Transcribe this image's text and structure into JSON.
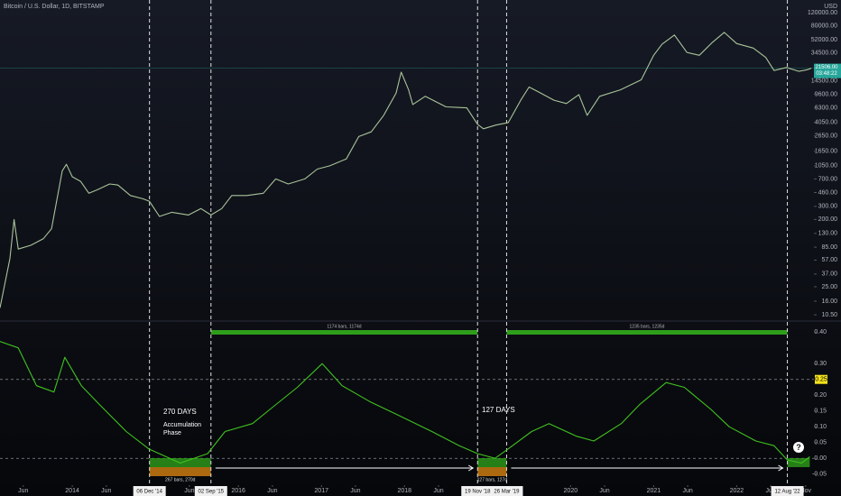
{
  "chart_data": [
    {
      "type": "line",
      "title": "Bitcoin / U.S. Dollar, 1D, BITSTAMP",
      "unit": "USD",
      "log_scale": true,
      "grid": false,
      "x": [
        2013.13,
        2013.25,
        2013.3,
        2013.35,
        2013.5,
        2013.65,
        2013.75,
        2013.88,
        2013.93,
        2014.0,
        2014.1,
        2014.2,
        2014.3,
        2014.45,
        2014.55,
        2014.7,
        2014.85,
        2014.93,
        2015.05,
        2015.2,
        2015.4,
        2015.55,
        2015.67,
        2015.8,
        2015.92,
        2016.1,
        2016.3,
        2016.45,
        2016.6,
        2016.8,
        2016.95,
        2017.1,
        2017.3,
        2017.45,
        2017.6,
        2017.75,
        2017.9,
        2017.96,
        2018.05,
        2018.1,
        2018.25,
        2018.5,
        2018.75,
        2018.88,
        2018.95,
        2019.1,
        2019.25,
        2019.4,
        2019.5,
        2019.6,
        2019.8,
        2019.95,
        2020.1,
        2020.2,
        2020.35,
        2020.6,
        2020.85,
        2021.0,
        2021.1,
        2021.25,
        2021.4,
        2021.55,
        2021.7,
        2021.85,
        2022.0,
        2022.2,
        2022.35,
        2022.45,
        2022.6,
        2022.75,
        2022.85,
        2022.9
      ],
      "series": [
        {
          "color": "#a9c49a",
          "values": [
            13,
            60,
            200,
            80,
            90,
            110,
            150,
            900,
            1100,
            750,
            650,
            450,
            500,
            600,
            580,
            420,
            380,
            350,
            220,
            250,
            230,
            280,
            230,
            280,
            420,
            420,
            450,
            700,
            600,
            700,
            950,
            1050,
            1300,
            2600,
            3000,
            5000,
            10000,
            19000,
            11000,
            7000,
            9000,
            6500,
            6300,
            3800,
            3300,
            3700,
            4000,
            8000,
            12000,
            10500,
            8000,
            7200,
            9500,
            5000,
            9000,
            11000,
            15000,
            32000,
            45000,
            60000,
            35000,
            32000,
            47000,
            65000,
            46000,
            40000,
            30000,
            20000,
            22000,
            19500,
            20500,
            21500
          ]
        }
      ],
      "ylim": [
        8.9,
        177000
      ],
      "yticks": [
        {
          "value": 120000,
          "label": "120000.00"
        },
        {
          "value": 80000,
          "label": "80000.00"
        },
        {
          "value": 52000,
          "label": "52000.00"
        },
        {
          "value": 34500,
          "label": "34500.00"
        },
        {
          "value": 14500,
          "label": "14500.00"
        },
        {
          "value": 9600,
          "label": "9600.00"
        },
        {
          "value": 6300,
          "label": "6300.00"
        },
        {
          "value": 4050,
          "label": "4050.00"
        },
        {
          "value": 2650,
          "label": "2650.00"
        },
        {
          "value": 1650,
          "label": "1650.00"
        },
        {
          "value": 1050,
          "label": "1050.00"
        },
        {
          "value": 700,
          "label": "700.00"
        },
        {
          "value": 460,
          "label": "460.00"
        },
        {
          "value": 300,
          "label": "300.00"
        },
        {
          "value": 200,
          "label": "200.00"
        },
        {
          "value": 130,
          "label": "130.00"
        },
        {
          "value": 85,
          "label": "85.00"
        },
        {
          "value": 57,
          "label": "57.00"
        },
        {
          "value": 37,
          "label": "37.00"
        },
        {
          "value": 25,
          "label": "25.00"
        },
        {
          "value": 16,
          "label": "16.00"
        },
        {
          "value": 10.5,
          "label": "10.50"
        }
      ],
      "last_price": {
        "value": 21506,
        "label": "21506.00",
        "countdown": "03:48:22",
        "color": "#26a69a"
      }
    },
    {
      "type": "line",
      "grid": false,
      "x": [
        2013.13,
        2013.35,
        2013.57,
        2013.78,
        2013.91,
        2014.11,
        2014.33,
        2014.65,
        2014.92,
        2015.3,
        2015.63,
        2015.84,
        2016.17,
        2016.38,
        2016.71,
        2017.01,
        2017.25,
        2017.58,
        2017.9,
        2018.33,
        2018.66,
        2018.88,
        2019.09,
        2019.25,
        2019.53,
        2019.74,
        2020.07,
        2020.28,
        2020.61,
        2020.83,
        2021.15,
        2021.37,
        2021.69,
        2021.91,
        2022.23,
        2022.45,
        2022.61,
        2022.78,
        2022.88
      ],
      "series": [
        {
          "color": "#3fc21f",
          "values": [
            0.37,
            0.35,
            0.23,
            0.21,
            0.32,
            0.23,
            0.17,
            0.085,
            0.03,
            -0.015,
            0.015,
            0.085,
            0.11,
            0.155,
            0.225,
            0.3,
            0.23,
            0.18,
            0.14,
            0.085,
            0.04,
            0.015,
            0,
            0.03,
            0.085,
            0.11,
            0.07,
            0.055,
            0.11,
            0.17,
            0.24,
            0.225,
            0.155,
            0.1,
            0.055,
            0.04,
            -0.005,
            -0.015,
            0.005
          ]
        }
      ],
      "ylim": [
        -0.085,
        0.432
      ],
      "yticks": [
        {
          "value": 0.4,
          "label": "0.40"
        },
        {
          "value": 0.3,
          "label": "0.30"
        },
        {
          "value": 0.2,
          "label": "0.20"
        },
        {
          "value": 0.15,
          "label": "0.15"
        },
        {
          "value": 0.1,
          "label": "0.10"
        },
        {
          "value": 0.05,
          "label": "0.05"
        },
        {
          "value": 0,
          "label": "0.00"
        },
        {
          "value": -0.05,
          "label": "-0.05"
        }
      ],
      "reference_lines": [
        {
          "value": 0.25,
          "label": "0.25",
          "color": "#f5e31b"
        },
        {
          "value": 0
        }
      ],
      "xlim": [
        2013.13,
        2022.93
      ],
      "xticks": [
        {
          "value": 2013.41,
          "label": "Jun"
        },
        2014,
        {
          "value": 2014.41,
          "label": "Jun"
        },
        {
          "value": 2015.41,
          "label": "Jun"
        },
        2016,
        {
          "value": 2016.41,
          "label": "Jun"
        },
        2017,
        {
          "value": 2017.41,
          "label": "Jun"
        },
        2018,
        {
          "value": 2018.41,
          "label": "Jun"
        },
        2020,
        {
          "value": 2020.41,
          "label": "Jun"
        },
        2021,
        {
          "value": 2021.41,
          "label": "Jun"
        },
        2022,
        {
          "value": 2022.41,
          "label": "Jun"
        },
        {
          "value": 2022.83,
          "label": "Nov"
        }
      ],
      "markers": [
        {
          "x": 2014.93,
          "label": "06 Dec '14"
        },
        {
          "x": 2015.67,
          "label": "02 Sep '15"
        },
        {
          "x": 2018.88,
          "label": "19 Nov '18"
        },
        {
          "x": 2019.23,
          "label": "26 Mar '19"
        },
        {
          "x": 2022.61,
          "label": "12 Aug '22"
        }
      ],
      "ranges": [
        {
          "start": 2014.93,
          "end": 2015.67,
          "label": "267 bars, 270d",
          "kind": "accumulation"
        },
        {
          "start": 2015.67,
          "end": 2018.88,
          "label": "1174 bars, 1174d",
          "kind": "trend"
        },
        {
          "start": 2018.88,
          "end": 2019.23,
          "label": "127 bars, 127d",
          "kind": "accumulation"
        },
        {
          "start": 2019.23,
          "end": 2022.61,
          "label": "1235 bars, 1235d",
          "kind": "trend"
        },
        {
          "start": 2022.61,
          "end": 2022.88,
          "kind": "open"
        }
      ],
      "annotations": [
        "270 DAYS",
        "Accumulation",
        "Phase",
        "127 DAYS",
        "?"
      ]
    }
  ]
}
